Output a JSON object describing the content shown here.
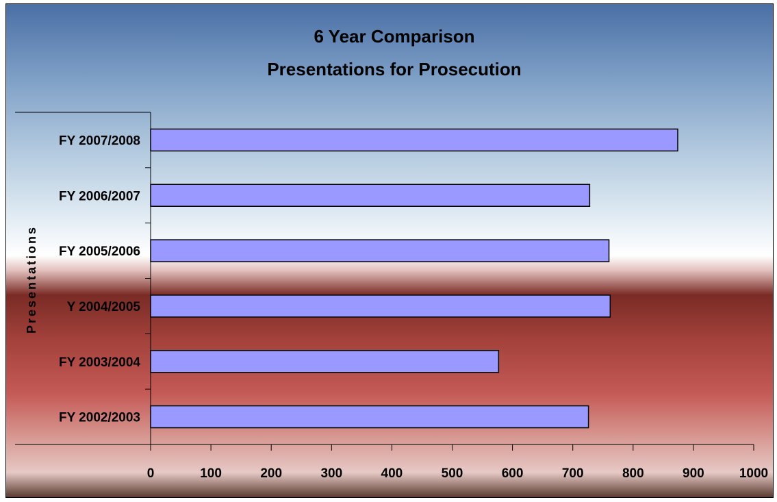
{
  "chart_data": {
    "type": "bar",
    "orientation": "horizontal",
    "title": "6 Year Comparison",
    "subtitle": "Presentations for Prosecution",
    "ylabel": "Presentations",
    "xlabel": "",
    "categories": [
      "FY 2007/2008",
      "FY 2006/2007",
      "FY 2005/2006",
      "Y 2004/2005",
      "FY 2003/2004",
      "FY 2002/2003"
    ],
    "values": [
      874,
      728,
      760,
      762,
      577,
      726
    ],
    "xlim": [
      0,
      1000
    ],
    "xticks": [
      "0",
      "100",
      "200",
      "300",
      "400",
      "500",
      "600",
      "700",
      "800",
      "900",
      "1000"
    ],
    "grid": false,
    "legend": "none",
    "colors": {
      "bar_fill": "#9999ff",
      "bar_stroke": "#000000"
    }
  }
}
